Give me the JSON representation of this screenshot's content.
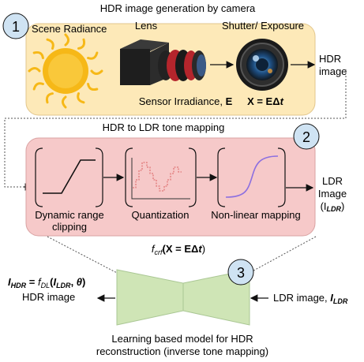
{
  "stage1": {
    "number": "1",
    "title": "HDR image generation by camera",
    "scene_label": "Scene Radiance",
    "lens_label": "Lens",
    "shutter_label": "Shutter/ Exposure",
    "irradiance_label": "Sensor Irradiance, ",
    "irradiance_symbol": "E",
    "exposure_eq_prefix": "X = EΔ",
    "exposure_eq_var": "t",
    "output_line1": "HDR",
    "output_line2": "image",
    "colors": {
      "panel": "#fde9b8",
      "badge": "#cfe3f3",
      "sun": "#f6b817"
    }
  },
  "stage2": {
    "number": "2",
    "title": "HDR to LDR tone mapping",
    "blocks": [
      {
        "line1": "Dynamic range",
        "line2": "clipping"
      },
      {
        "line1": "Quantization",
        "line2": ""
      },
      {
        "line1": "Non-linear mapping",
        "line2": ""
      }
    ],
    "output_line1": "LDR",
    "output_line2": "Image",
    "output_line3_prefix": "(I",
    "output_line3_sub": "LDR",
    "output_line3_suffix": ")",
    "crf_f": "f",
    "crf_sub": "crf",
    "crf_arg": "(X = EΔ",
    "crf_var": "t",
    "crf_close": ")",
    "colors": {
      "panel": "#f6c9c9",
      "curve": "#8c6fe0"
    }
  },
  "stage3": {
    "number": "3",
    "hdr_eq": {
      "i": "I",
      "i_sub": "HDR",
      "eq": " = ",
      "f": "f",
      "f_sub": "DL",
      "open": "(",
      "arg": "I",
      "arg_sub": "LDR",
      "comma": ", ",
      "theta": "θ",
      "close": ")"
    },
    "hdr_label": "HDR image",
    "ldr_label_prefix": "LDR image, ",
    "ldr_i": "I",
    "ldr_sub": "LDR",
    "caption_line1": "Learning based model for HDR",
    "caption_line2": "reconstruction (inverse tone mapping)",
    "colors": {
      "network": "#cfe5b6"
    }
  }
}
